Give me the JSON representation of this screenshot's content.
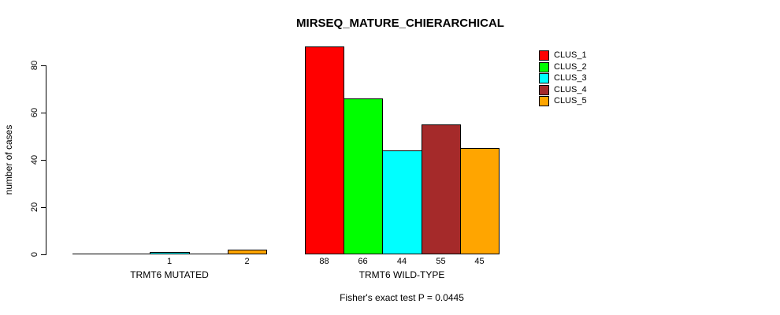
{
  "chart_data": {
    "type": "bar",
    "title": "MIRSEQ_MATURE_CHIERARCHICAL",
    "ylabel": "number of cases",
    "ylim": [
      0,
      88
    ],
    "yticks": [
      0,
      20,
      40,
      60,
      80
    ],
    "grid": false,
    "legend_position": "top-right",
    "clusters": [
      "CLUS_1",
      "CLUS_2",
      "CLUS_3",
      "CLUS_4",
      "CLUS_5"
    ],
    "colors": [
      "#ff0000",
      "#00ff00",
      "#00ffff",
      "#a52a2a",
      "#ffa500"
    ],
    "groups": [
      {
        "label": "TRMT6 MUTATED",
        "values": [
          0,
          0,
          1,
          0,
          2
        ],
        "bar_labels": [
          "",
          "",
          "1",
          "",
          "2"
        ]
      },
      {
        "label": "TRMT6 WILD-TYPE",
        "values": [
          88,
          66,
          44,
          55,
          45
        ],
        "bar_labels": [
          "88",
          "66",
          "44",
          "55",
          "45"
        ]
      }
    ],
    "annotation": "Fisher's exact test P = 0.0445"
  }
}
